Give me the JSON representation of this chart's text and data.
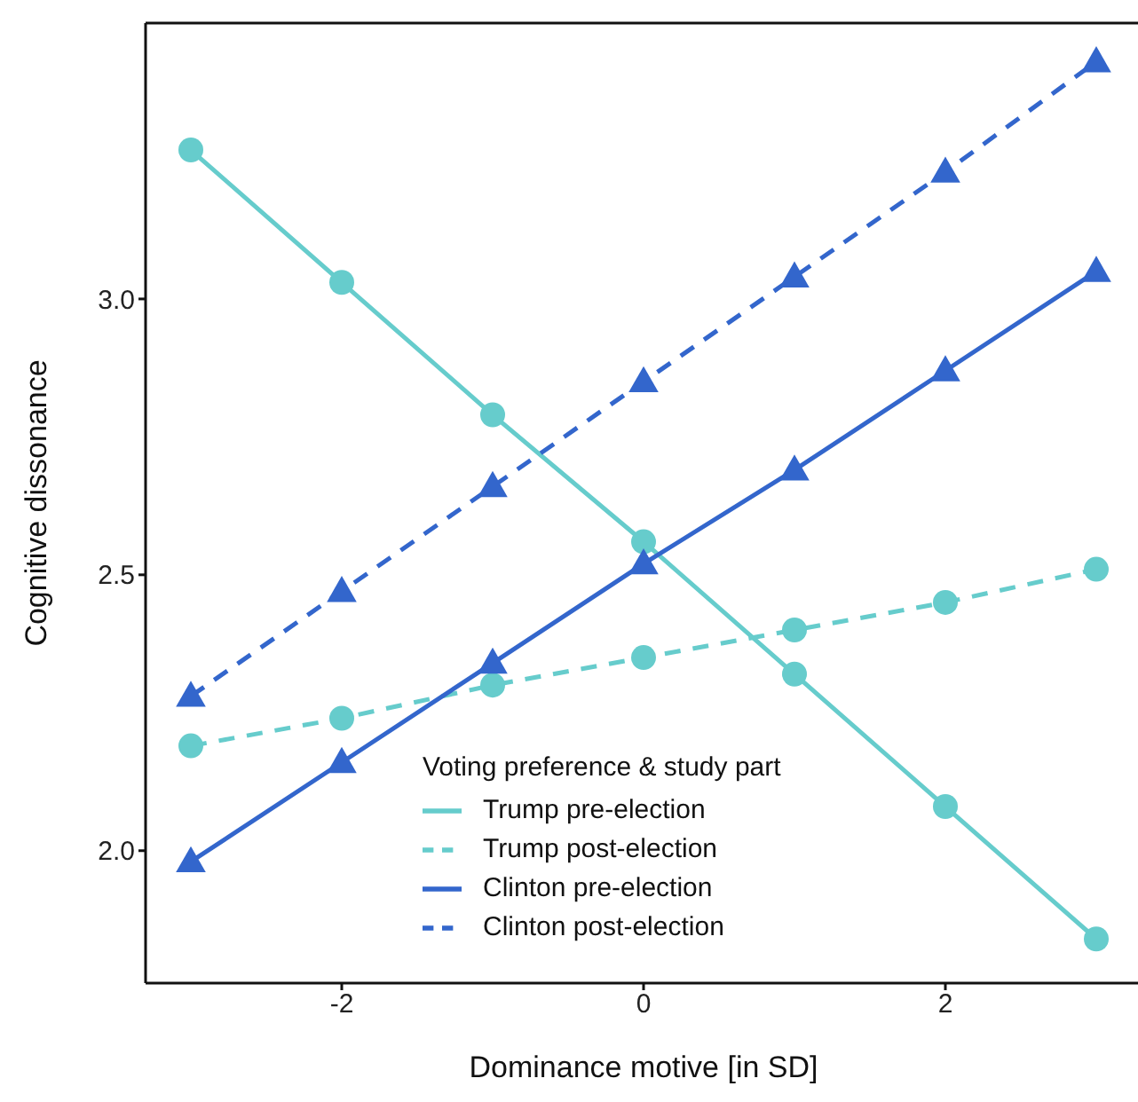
{
  "chart_data": {
    "type": "line",
    "xlabel": "Dominance motive [in SD]",
    "ylabel": "Cognitive dissonance",
    "legend_title": "Voting preference & study part",
    "x": [
      -3,
      -2,
      -1,
      0,
      1,
      2,
      3
    ],
    "xlim": [
      -3.3,
      3.3
    ],
    "xticks": [
      -2,
      0,
      2
    ],
    "ylim": [
      1.76,
      3.5
    ],
    "yticks": [
      {
        "value": 2,
        "label": "2.0"
      },
      2.5,
      {
        "value": 3,
        "label": "3.0"
      }
    ],
    "grid": false,
    "legend": "bottom",
    "series": [
      {
        "name": "Trump pre-election",
        "color": "#66cccc",
        "marker": "circle",
        "line_style": "solid",
        "values": [
          3.27,
          3.03,
          2.79,
          2.56,
          2.32,
          2.08,
          1.84
        ]
      },
      {
        "name": "Trump post-election",
        "color": "#66cccc",
        "marker": "circle",
        "line_style": "dashed",
        "values": [
          2.19,
          2.24,
          2.3,
          2.35,
          2.4,
          2.45,
          2.51
        ]
      },
      {
        "name": "Clinton pre-election",
        "color": "#3366cc",
        "marker": "triangle",
        "line_style": "solid",
        "values": [
          1.98,
          2.16,
          2.34,
          2.52,
          2.69,
          2.87,
          3.05
        ]
      },
      {
        "name": "Clinton post-election",
        "color": "#3366cc",
        "marker": "triangle",
        "line_style": "dashed",
        "values": [
          2.28,
          2.47,
          2.66,
          2.85,
          3.04,
          3.23,
          3.43
        ]
      }
    ]
  }
}
